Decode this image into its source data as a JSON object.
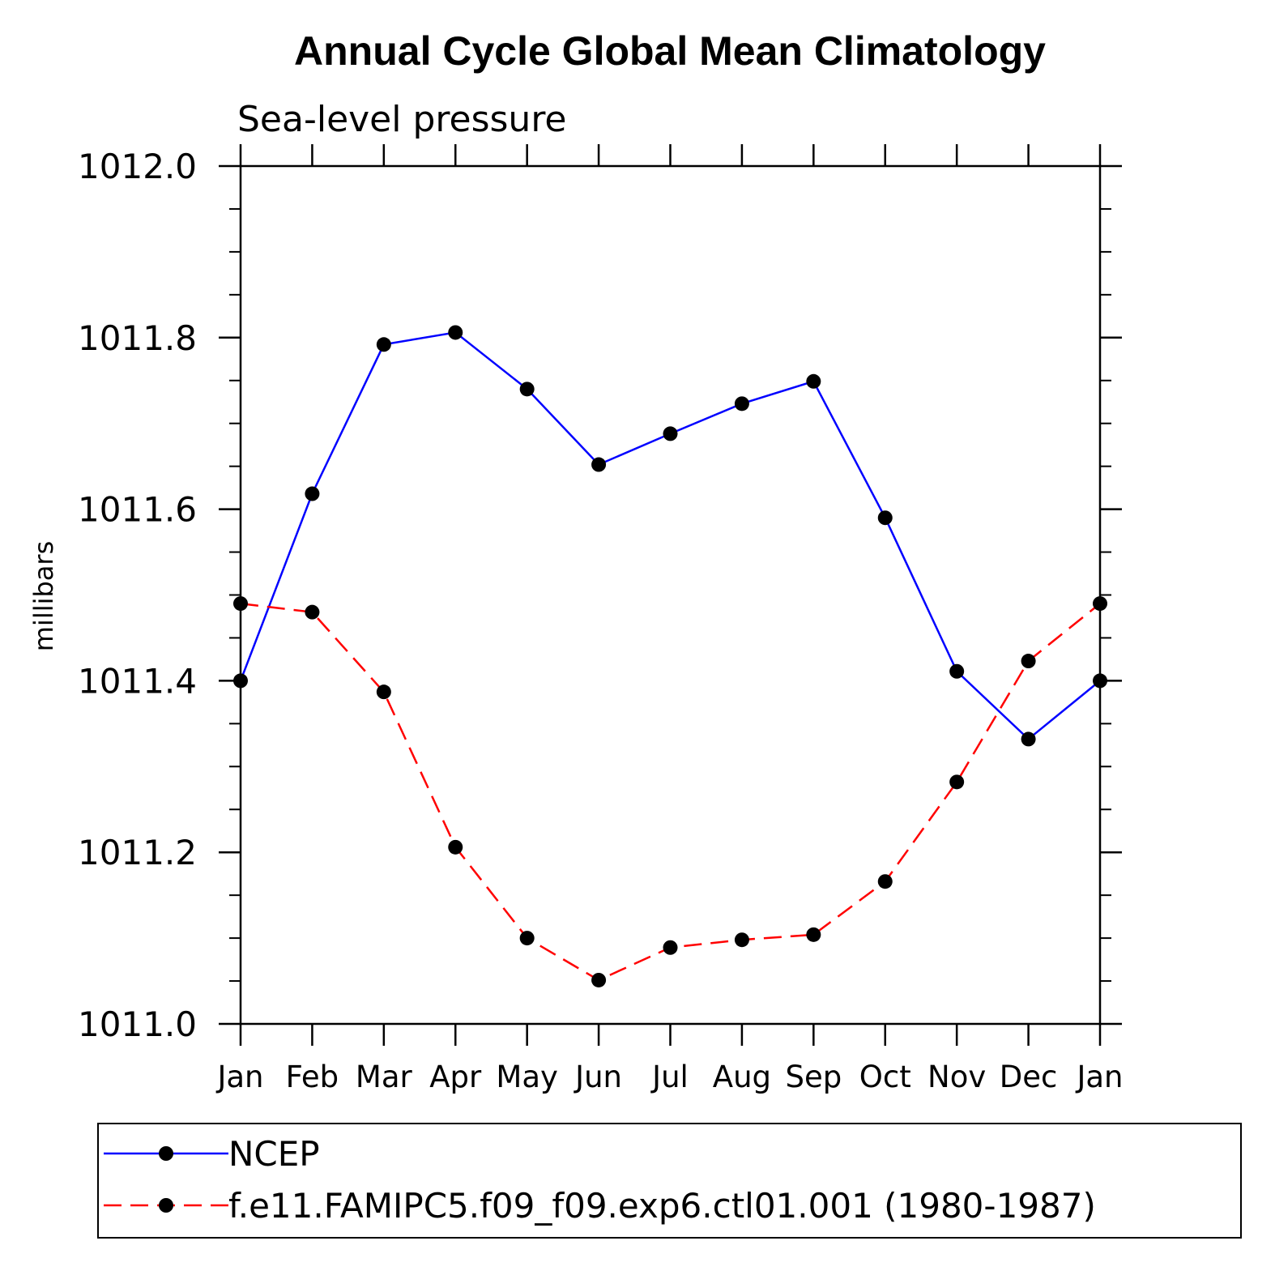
{
  "chart_data": {
    "type": "line",
    "title": "Annual Cycle Global Mean Climatology",
    "subtitle": "Sea-level pressure",
    "xlabel": "",
    "ylabel": "millibars",
    "categories": [
      "Jan",
      "Feb",
      "Mar",
      "Apr",
      "May",
      "Jun",
      "Jul",
      "Aug",
      "Sep",
      "Oct",
      "Nov",
      "Dec",
      "Jan"
    ],
    "ylim": [
      1011.0,
      1012.0
    ],
    "yticks": [
      "1011.0",
      "1011.2",
      "1011.4",
      "1011.6",
      "1011.8",
      "1012.0"
    ],
    "grid": false,
    "legend_position": "bottom",
    "series": [
      {
        "name": "NCEP",
        "color": "#0000ff",
        "style": "solid",
        "marker": "circle",
        "values": [
          1011.4,
          1011.618,
          1011.792,
          1011.806,
          1011.74,
          1011.652,
          1011.688,
          1011.723,
          1011.749,
          1011.59,
          1011.411,
          1011.332,
          1011.4
        ]
      },
      {
        "name": "f.e11.FAMIPC5.f09_f09.exp6.ctl01.001 (1980-1987)",
        "color": "#ff0000",
        "style": "dashed",
        "marker": "circle",
        "values": [
          1011.49,
          1011.48,
          1011.387,
          1011.206,
          1011.1,
          1011.051,
          1011.089,
          1011.098,
          1011.104,
          1011.166,
          1011.282,
          1011.423,
          1011.49
        ]
      }
    ]
  }
}
